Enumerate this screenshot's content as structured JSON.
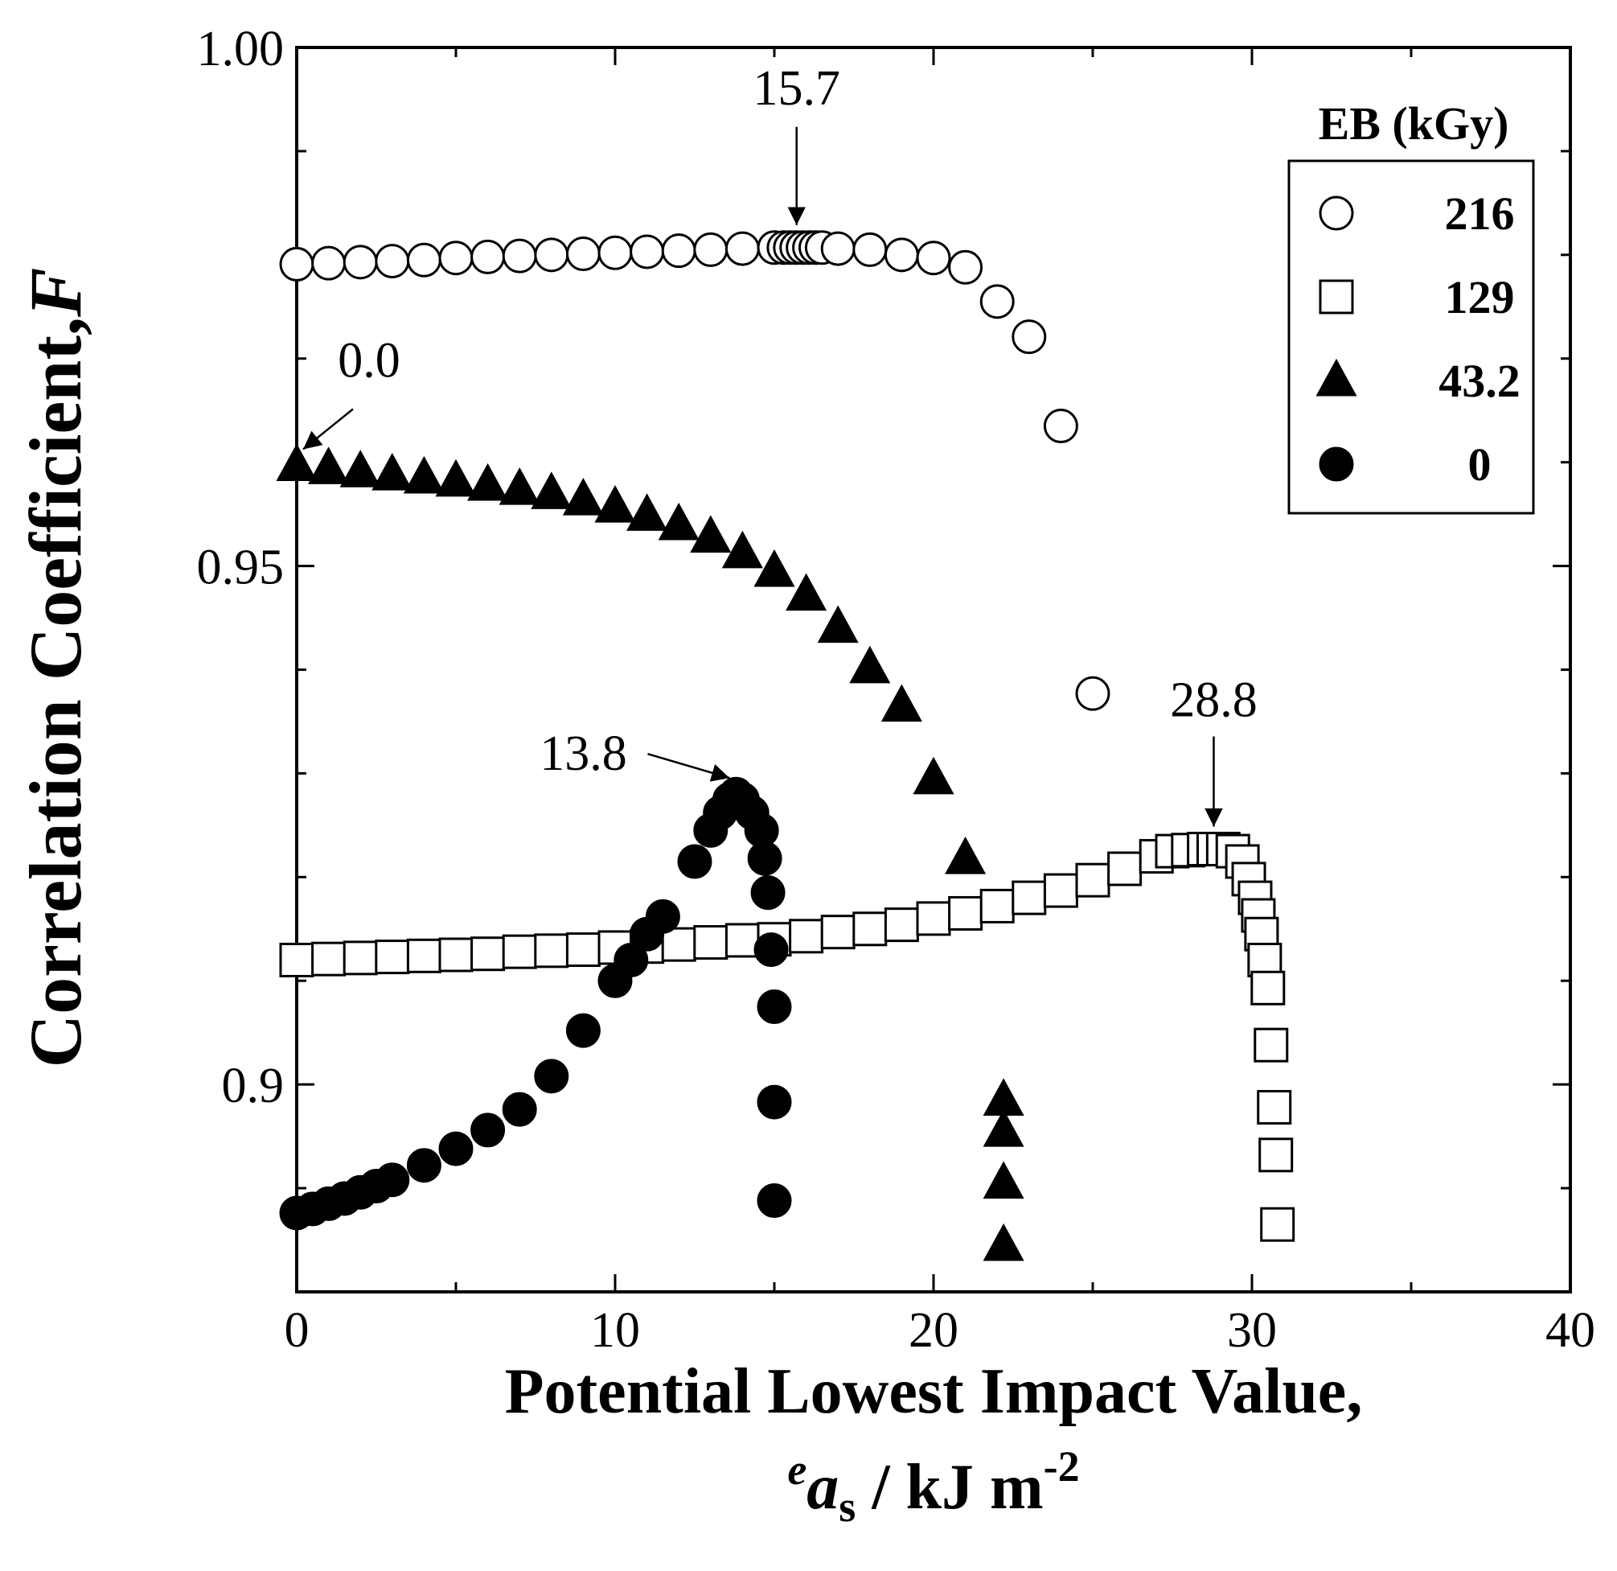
{
  "chart_data": {
    "type": "scatter",
    "title": "",
    "xlabel": "Potential Lowest Impact Value,",
    "xlabel_unit": {
      "sup": "e",
      "var": "a",
      "sub": "s",
      "rest": " / kJ m",
      "exp": "-2"
    },
    "ylabel": "Correlation Coefficient,",
    "ylabel_var": "F",
    "xlim": [
      0,
      40
    ],
    "ylim": [
      0.88,
      1.0
    ],
    "x_ticks": [
      "0",
      "10",
      "20",
      "30",
      "40"
    ],
    "y_ticks": [
      "0.9",
      "0.95",
      "1.00"
    ],
    "grid": false,
    "legend": {
      "title": "EB (kGy)",
      "position": "top-right"
    },
    "series": [
      {
        "name": "216",
        "marker": "circle-open",
        "points": [
          [
            0,
            0.9791
          ],
          [
            1,
            0.9792
          ],
          [
            2,
            0.9793
          ],
          [
            3,
            0.9794
          ],
          [
            4,
            0.9795
          ],
          [
            5,
            0.9797
          ],
          [
            6,
            0.9798
          ],
          [
            7,
            0.9799
          ],
          [
            8,
            0.98
          ],
          [
            9,
            0.9801
          ],
          [
            10,
            0.9802
          ],
          [
            11,
            0.9803
          ],
          [
            12,
            0.9804
          ],
          [
            13,
            0.9805
          ],
          [
            14,
            0.9806
          ],
          [
            15,
            0.9807
          ],
          [
            15.3,
            0.9807
          ],
          [
            15.5,
            0.9807
          ],
          [
            15.7,
            0.9807
          ],
          [
            15.9,
            0.9807
          ],
          [
            16.1,
            0.9807
          ],
          [
            16.3,
            0.9807
          ],
          [
            16.5,
            0.9807
          ],
          [
            17,
            0.9806
          ],
          [
            18,
            0.9805
          ],
          [
            19,
            0.98
          ],
          [
            20,
            0.9797
          ],
          [
            21,
            0.9788
          ],
          [
            22,
            0.9755
          ],
          [
            23,
            0.9721
          ],
          [
            24,
            0.9635
          ],
          [
            25,
            0.9377
          ]
        ]
      },
      {
        "name": "129",
        "marker": "square-open",
        "points": [
          [
            0,
            0.912
          ],
          [
            1,
            0.9121
          ],
          [
            2,
            0.9122
          ],
          [
            3,
            0.9123
          ],
          [
            4,
            0.9124
          ],
          [
            5,
            0.9125
          ],
          [
            6,
            0.9126
          ],
          [
            7,
            0.9128
          ],
          [
            8,
            0.9129
          ],
          [
            9,
            0.913
          ],
          [
            10,
            0.9132
          ],
          [
            11,
            0.9133
          ],
          [
            12,
            0.9135
          ],
          [
            13,
            0.9137
          ],
          [
            14,
            0.9139
          ],
          [
            15,
            0.914
          ],
          [
            16,
            0.9143
          ],
          [
            17,
            0.9147
          ],
          [
            18,
            0.915
          ],
          [
            19,
            0.9154
          ],
          [
            20,
            0.916
          ],
          [
            21,
            0.9165
          ],
          [
            22,
            0.9172
          ],
          [
            23,
            0.918
          ],
          [
            24,
            0.9187
          ],
          [
            25,
            0.9197
          ],
          [
            26,
            0.9208
          ],
          [
            27,
            0.922
          ],
          [
            27.5,
            0.9225
          ],
          [
            28,
            0.9226
          ],
          [
            28.5,
            0.9227
          ],
          [
            28.8,
            0.9227
          ],
          [
            29.1,
            0.9227
          ],
          [
            29.4,
            0.9225
          ],
          [
            29.7,
            0.9215
          ],
          [
            29.9,
            0.9198
          ],
          [
            30.1,
            0.918
          ],
          [
            30.2,
            0.9163
          ],
          [
            30.3,
            0.9145
          ],
          [
            30.4,
            0.912
          ],
          [
            30.5,
            0.9093
          ],
          [
            30.6,
            0.9038
          ],
          [
            30.7,
            0.8978
          ],
          [
            30.75,
            0.8932
          ],
          [
            30.8,
            0.8865
          ]
        ]
      },
      {
        "name": "43.2",
        "marker": "triangle-filled",
        "points": [
          [
            0,
            0.9597
          ],
          [
            1,
            0.9594
          ],
          [
            2,
            0.9591
          ],
          [
            3,
            0.9588
          ],
          [
            4,
            0.9585
          ],
          [
            5,
            0.9582
          ],
          [
            6,
            0.9578
          ],
          [
            7,
            0.9574
          ],
          [
            8,
            0.957
          ],
          [
            9,
            0.9564
          ],
          [
            10,
            0.9557
          ],
          [
            11,
            0.9549
          ],
          [
            12,
            0.954
          ],
          [
            13,
            0.9528
          ],
          [
            14,
            0.9513
          ],
          [
            15,
            0.9495
          ],
          [
            16,
            0.9472
          ],
          [
            17,
            0.9441
          ],
          [
            18,
            0.9402
          ],
          [
            19,
            0.9365
          ],
          [
            20,
            0.9295
          ],
          [
            21,
            0.9218
          ],
          [
            22.2,
            0.8985
          ],
          [
            22.2,
            0.8955
          ],
          [
            22.2,
            0.8905
          ],
          [
            22.2,
            0.8845
          ]
        ]
      },
      {
        "name": "0",
        "marker": "circle-filled",
        "points": [
          [
            0,
            0.8876
          ],
          [
            0.5,
            0.888
          ],
          [
            1,
            0.8885
          ],
          [
            1.5,
            0.889
          ],
          [
            2,
            0.8896
          ],
          [
            2.5,
            0.8902
          ],
          [
            3,
            0.8908
          ],
          [
            4,
            0.8922
          ],
          [
            5,
            0.8938
          ],
          [
            6,
            0.8956
          ],
          [
            7,
            0.8976
          ],
          [
            8,
            0.9008
          ],
          [
            9,
            0.9052
          ],
          [
            10,
            0.91
          ],
          [
            10.5,
            0.912
          ],
          [
            11,
            0.9145
          ],
          [
            11.5,
            0.9162
          ],
          [
            12.5,
            0.9215
          ],
          [
            13,
            0.9245
          ],
          [
            13.3,
            0.9262
          ],
          [
            13.6,
            0.9275
          ],
          [
            13.8,
            0.928
          ],
          [
            14,
            0.9275
          ],
          [
            14.3,
            0.9262
          ],
          [
            14.6,
            0.9245
          ],
          [
            14.7,
            0.9218
          ],
          [
            14.8,
            0.9185
          ],
          [
            14.9,
            0.913
          ],
          [
            15,
            0.9075
          ],
          [
            15,
            0.8983
          ],
          [
            15,
            0.8888
          ]
        ]
      }
    ],
    "annotations": [
      {
        "text": "15.7",
        "x": 15.7,
        "y": 0.9807
      },
      {
        "text": "0.0",
        "x": 0.0,
        "y": 0.9597
      },
      {
        "text": "13.8",
        "x": 13.8,
        "y": 0.928
      },
      {
        "text": "28.8",
        "x": 28.8,
        "y": 0.9227
      }
    ]
  }
}
